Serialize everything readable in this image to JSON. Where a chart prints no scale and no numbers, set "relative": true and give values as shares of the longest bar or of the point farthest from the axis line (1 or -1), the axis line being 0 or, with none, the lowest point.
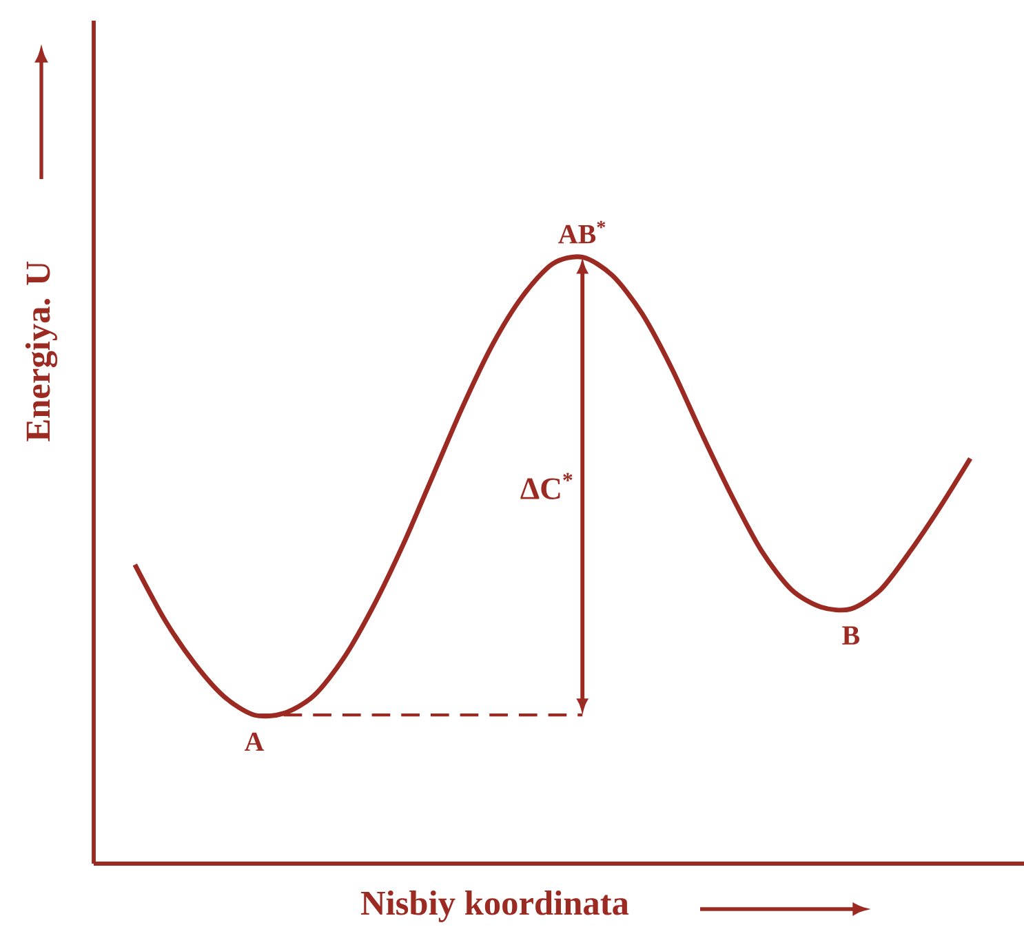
{
  "chart_data": {
    "type": "line",
    "relative": true,
    "color": "#9b2a22",
    "xlabel": "Nisbiy koordinata",
    "ylabel": "Energiya. U",
    "categories": [
      null,
      null,
      null,
      null,
      null,
      null,
      null,
      null,
      null,
      null,
      null,
      null,
      null,
      null,
      null,
      null,
      null,
      null,
      null,
      null,
      null,
      null,
      null,
      null,
      null,
      null,
      null,
      null,
      null
    ],
    "values": [
      0.493,
      0.402,
      0.33,
      0.275,
      0.245,
      0.248,
      0.277,
      0.339,
      0.425,
      0.527,
      0.641,
      0.755,
      0.857,
      0.936,
      0.989,
      1.0,
      0.97,
      0.907,
      0.816,
      0.709,
      0.607,
      0.516,
      0.452,
      0.423,
      0.42,
      0.452,
      0.516,
      0.589,
      0.668
    ],
    "annotations": [
      {
        "text": "AB$^{*}$",
        "y": 1.0
      },
      {
        "text": "A",
        "y": 0.245
      },
      {
        "text": "B",
        "y": 0.42
      },
      "ΔC$^{*}$"
    ]
  }
}
